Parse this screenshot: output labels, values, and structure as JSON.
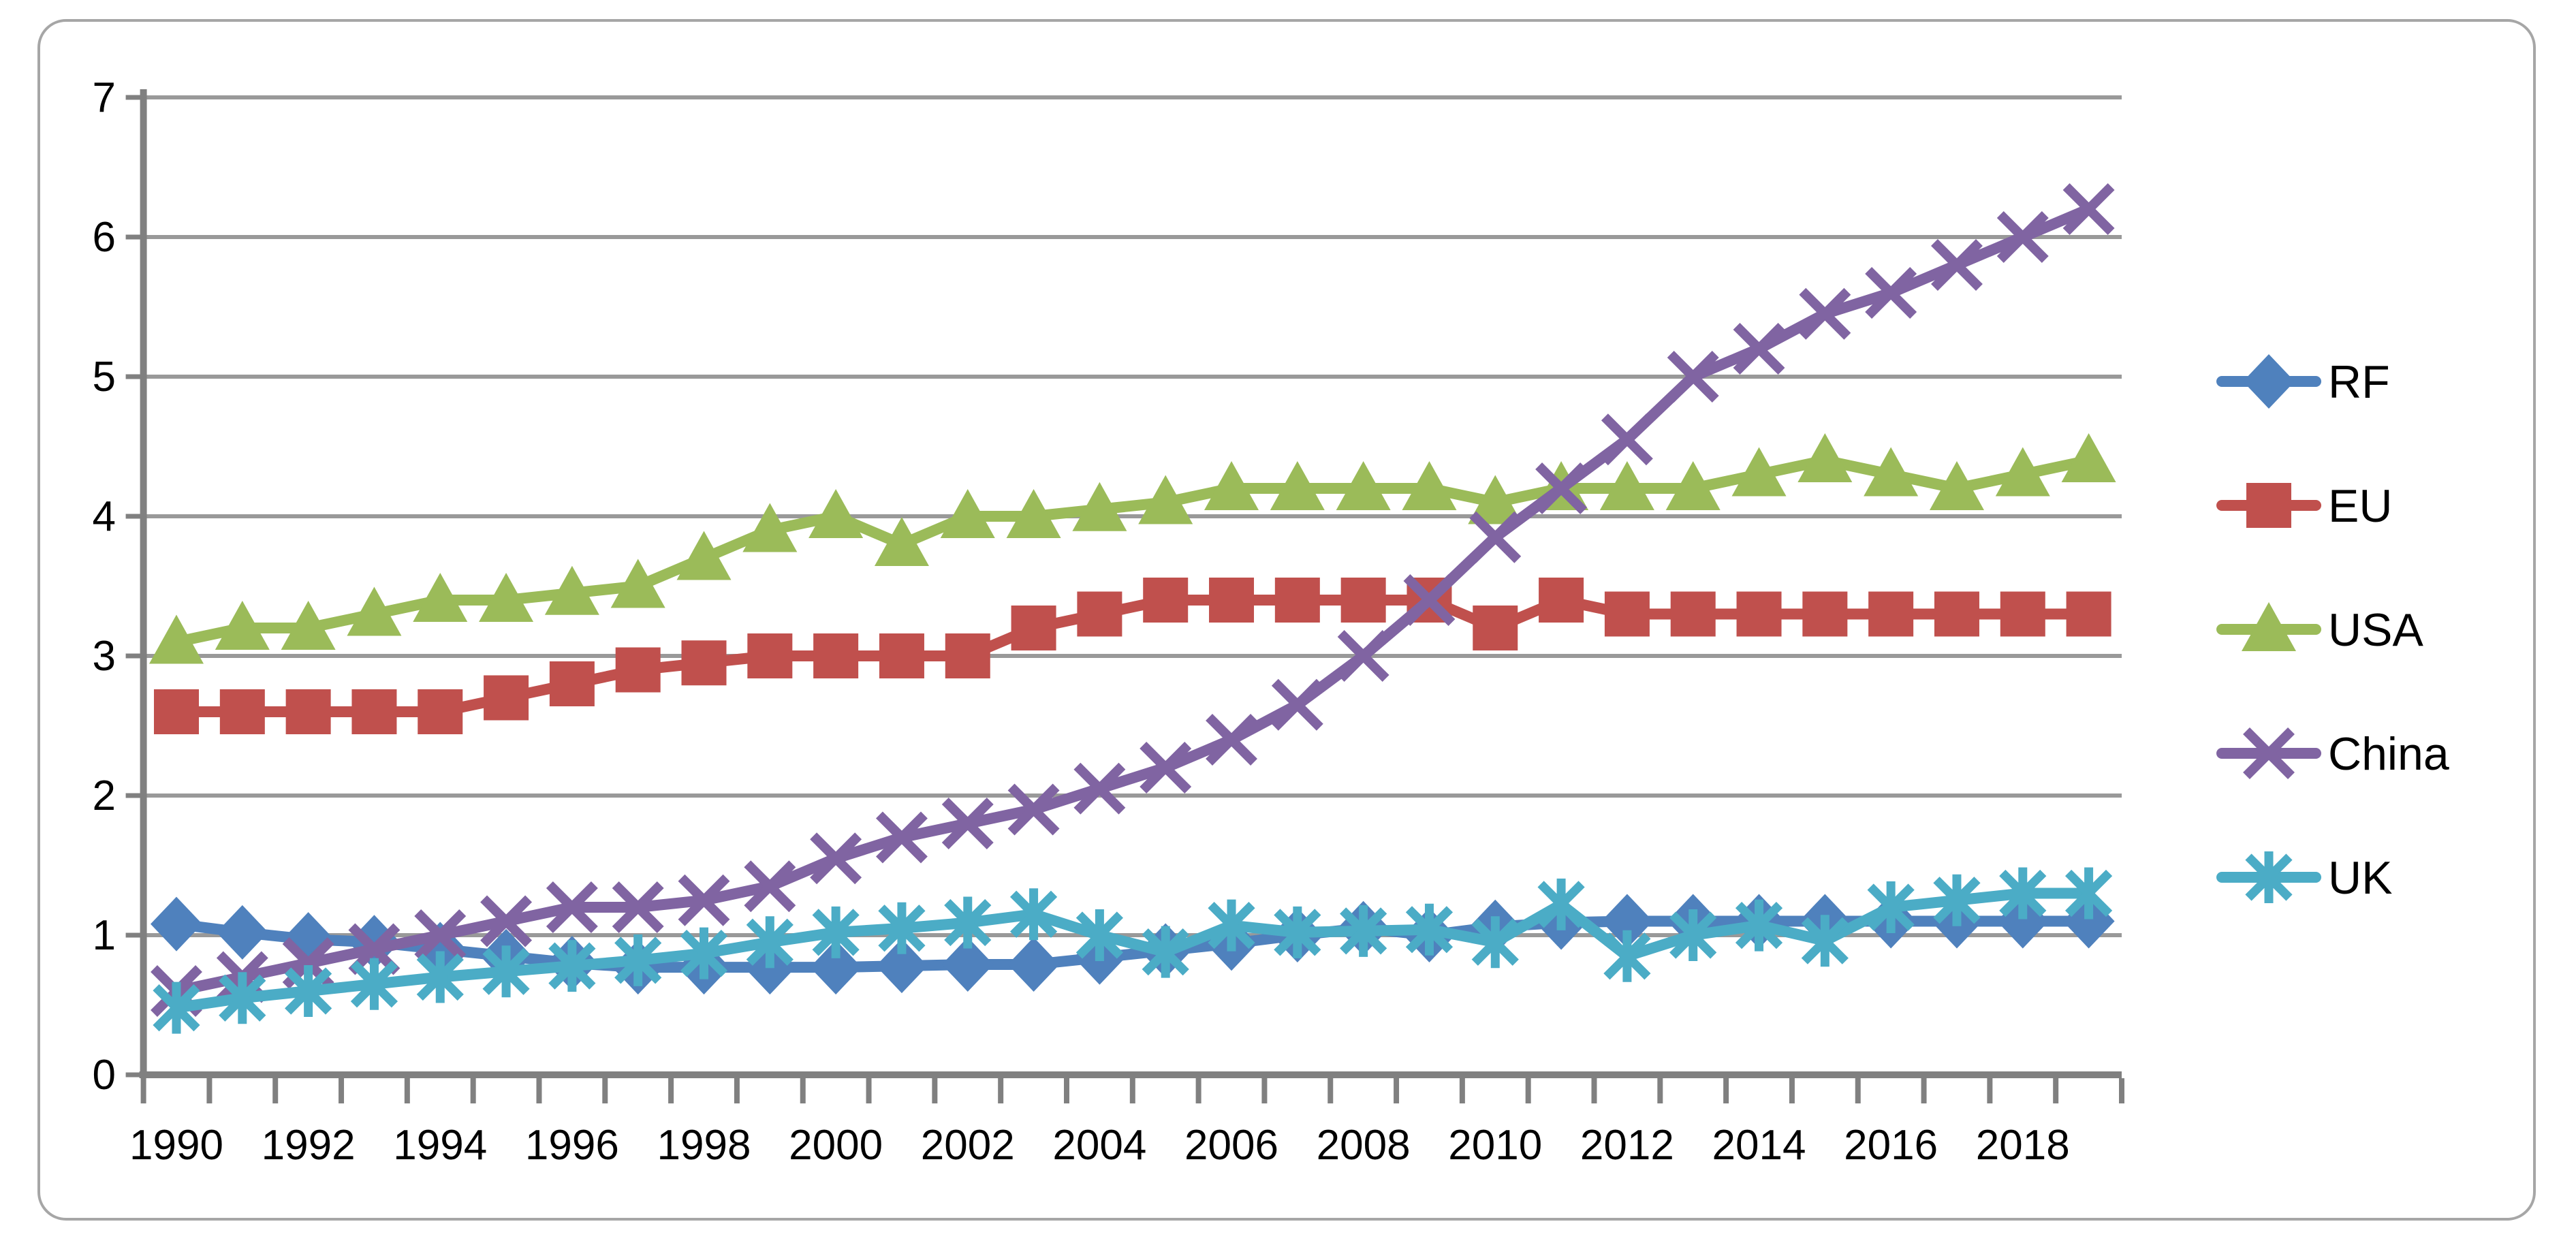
{
  "chart_data": {
    "type": "line",
    "title": "",
    "xlabel": "",
    "ylabel": "",
    "x": [
      1990,
      1991,
      1992,
      1993,
      1994,
      1995,
      1996,
      1997,
      1998,
      1999,
      2000,
      2001,
      2002,
      2003,
      2004,
      2005,
      2006,
      2007,
      2008,
      2009,
      2010,
      2011,
      2012,
      2013,
      2014,
      2015,
      2016,
      2017,
      2018,
      2019
    ],
    "x_tick_labels": [
      "1990",
      "1992",
      "1994",
      "1996",
      "1998",
      "2000",
      "2002",
      "2004",
      "2006",
      "2008",
      "2010",
      "2012",
      "2014",
      "2016",
      "2018"
    ],
    "ylim": [
      0,
      7
    ],
    "ytick_labels": [
      "0",
      "1",
      "2",
      "3",
      "4",
      "5",
      "6",
      "7"
    ],
    "grid": true,
    "legend_position": "right",
    "series": [
      {
        "name": "RF",
        "color": "#4F81BD",
        "marker": "diamond",
        "values": [
          1.08,
          1.02,
          0.97,
          0.95,
          0.9,
          0.85,
          0.8,
          0.77,
          0.77,
          0.77,
          0.77,
          0.78,
          0.79,
          0.79,
          0.84,
          0.89,
          0.94,
          1.0,
          1.05,
          1.0,
          1.06,
          1.09,
          1.1,
          1.1,
          1.1,
          1.1,
          1.1,
          1.1,
          1.1,
          1.1
        ]
      },
      {
        "name": "EU",
        "color": "#C0504D",
        "marker": "square",
        "values": [
          2.6,
          2.6,
          2.6,
          2.6,
          2.6,
          2.7,
          2.8,
          2.9,
          2.95,
          3.0,
          3.0,
          3.0,
          3.0,
          3.2,
          3.3,
          3.4,
          3.4,
          3.4,
          3.4,
          3.4,
          3.2,
          3.4,
          3.3,
          3.3,
          3.3,
          3.3,
          3.3,
          3.3,
          3.3,
          3.3
        ]
      },
      {
        "name": "USA",
        "color": "#9BBB59",
        "marker": "triangle",
        "values": [
          3.1,
          3.2,
          3.2,
          3.3,
          3.4,
          3.4,
          3.45,
          3.5,
          3.7,
          3.9,
          4.0,
          3.8,
          4.0,
          4.0,
          4.05,
          4.1,
          4.2,
          4.2,
          4.2,
          4.2,
          4.1,
          4.2,
          4.2,
          4.2,
          4.3,
          4.4,
          4.3,
          4.2,
          4.3,
          4.4
        ]
      },
      {
        "name": "China",
        "color": "#8064A2",
        "marker": "x",
        "values": [
          0.6,
          0.7,
          0.8,
          0.9,
          1.0,
          1.1,
          1.2,
          1.2,
          1.25,
          1.35,
          1.55,
          1.7,
          1.8,
          1.9,
          2.05,
          2.2,
          2.4,
          2.65,
          3.0,
          3.4,
          3.85,
          4.2,
          4.55,
          5.0,
          5.2,
          5.45,
          5.6,
          5.8,
          6.0,
          6.2
        ]
      },
      {
        "name": "UK",
        "color": "#4BACC6",
        "marker": "asterisk",
        "values": [
          0.48,
          0.55,
          0.6,
          0.65,
          0.7,
          0.74,
          0.78,
          0.82,
          0.87,
          0.95,
          1.02,
          1.05,
          1.09,
          1.15,
          1.0,
          0.88,
          1.07,
          1.02,
          1.03,
          1.04,
          0.95,
          1.22,
          0.85,
          1.0,
          1.07,
          0.96,
          1.2,
          1.25,
          1.3,
          1.3
        ]
      }
    ],
    "colors": {
      "gridline": "#999999",
      "axis": "#808080",
      "frame_border": "#a6a6a6",
      "background": "#ffffff"
    }
  },
  "legend": {
    "items": [
      {
        "label": "RF"
      },
      {
        "label": "EU"
      },
      {
        "label": "USA"
      },
      {
        "label": "China"
      },
      {
        "label": "UK"
      }
    ]
  }
}
